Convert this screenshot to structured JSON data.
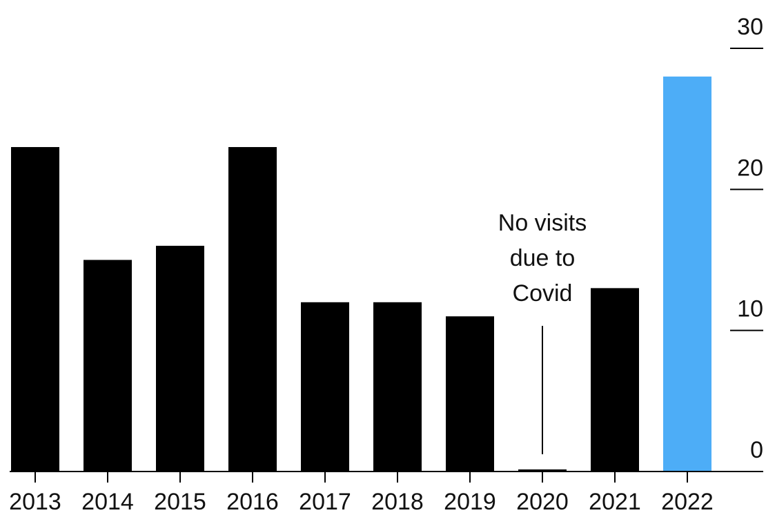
{
  "chart_data": {
    "type": "bar",
    "categories": [
      "2013",
      "2014",
      "2015",
      "2016",
      "2017",
      "2018",
      "2019",
      "2020",
      "2021",
      "2022"
    ],
    "values": [
      23,
      15,
      16,
      23,
      12,
      12,
      11,
      0,
      13,
      28
    ],
    "highlight_index": 9,
    "colors": {
      "bar": "#000000",
      "highlight": "#4DADF7",
      "axis": "#000000",
      "text": "#111111"
    },
    "ylim": [
      0,
      30
    ],
    "y_ticks": [
      0,
      10,
      20,
      30
    ],
    "y_axis_side": "right",
    "grid": false,
    "title": "",
    "xlabel": "",
    "ylabel": "",
    "annotation": {
      "category": "2020",
      "lines": [
        "No visits",
        "due to",
        "Covid"
      ]
    }
  }
}
